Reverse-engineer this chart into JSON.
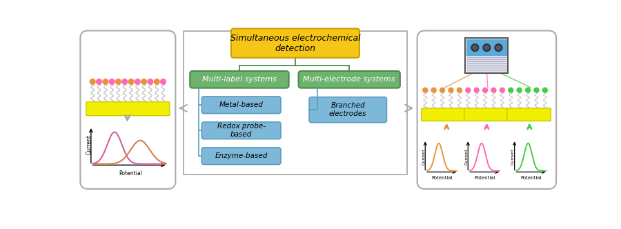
{
  "title_text": "Simultaneous electrochemical\ndetection",
  "title_box_color": "#F5C518",
  "title_box_edge": "#C8A000",
  "multilabel_text": "Multi-label systems",
  "multielectrode_text": "Multi-electrode systems",
  "green_box_color": "#6DB36D",
  "green_box_edge": "#4A8A4A",
  "blue_box_color": "#7EB8D8",
  "blue_box_edge": "#5A9EC0",
  "sub_items_left": [
    "Metal-based",
    "Redox probe-\nbased",
    "Enzyme-based"
  ],
  "sub_items_right": [
    "Branched\nelectrodes"
  ],
  "bg_color": "#FFFFFF",
  "electrode_color": "#F0F000",
  "electrode_edge": "#C8C800",
  "line_color": "#AAAAAA",
  "panel_edge": "#AAAAAA",
  "center_border": "#AAAAAA",
  "arrow_color": "#AAAAAA",
  "dot_orange": "#E8923C",
  "dot_pink": "#FF69B4",
  "dot_green": "#44CC44",
  "peak_pink": "#D060A0",
  "peak_orange": "#D4804A",
  "chip_blue": "#5AABDC",
  "chip_gray": "#CCCCCC",
  "chip_border": "#666688"
}
